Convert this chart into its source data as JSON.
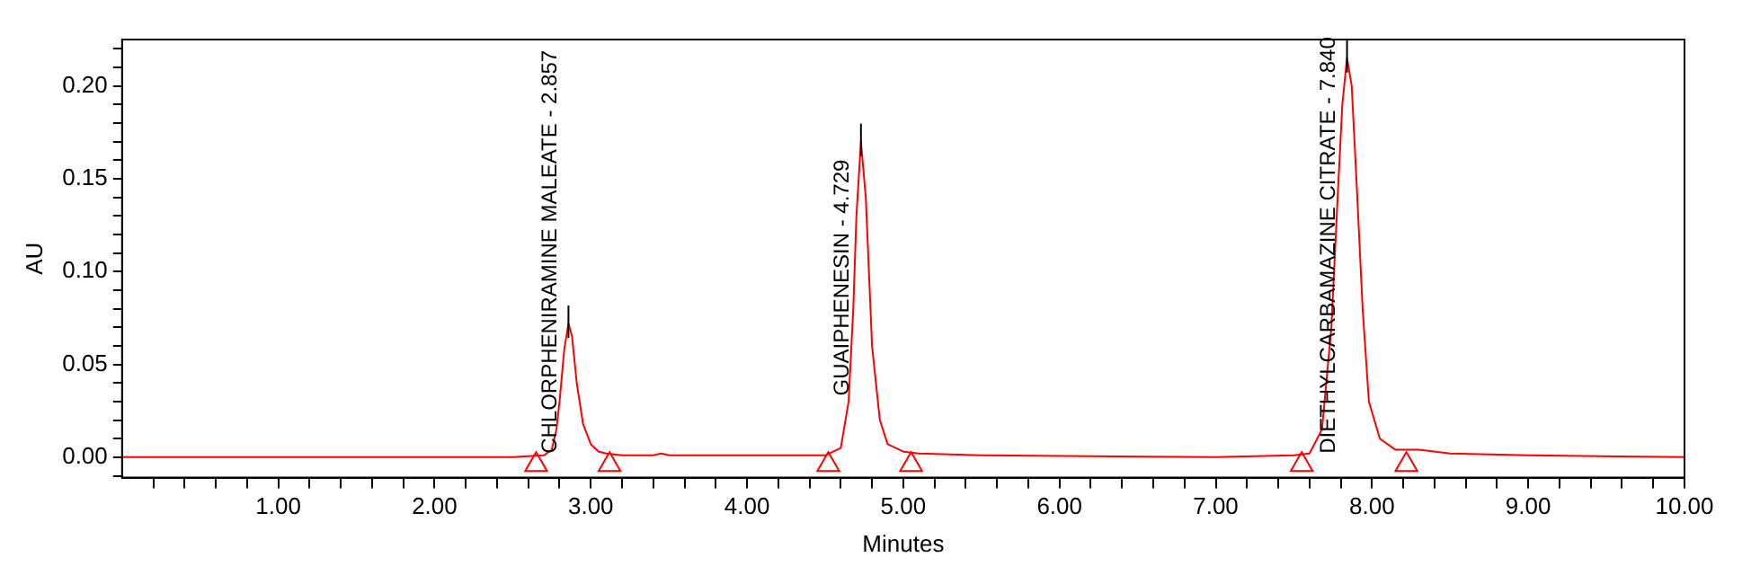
{
  "chart_data": {
    "type": "line",
    "xlabel": "Minutes",
    "ylabel": "AU",
    "xlim": [
      0,
      10
    ],
    "ylim": [
      -0.011,
      0.225
    ],
    "xticks": [
      {
        "value": 0.2,
        "label": null
      },
      {
        "value": 0.4,
        "label": null
      },
      {
        "value": 0.6,
        "label": null
      },
      {
        "value": 0.8,
        "label": null
      },
      {
        "value": 1,
        "label": "1.00"
      },
      {
        "value": 1.2,
        "label": null
      },
      {
        "value": 1.4,
        "label": null
      },
      {
        "value": 1.6,
        "label": null
      },
      {
        "value": 1.8,
        "label": null
      },
      {
        "value": 2,
        "label": "2.00"
      },
      {
        "value": 2.2,
        "label": null
      },
      {
        "value": 2.4,
        "label": null
      },
      {
        "value": 2.6,
        "label": null
      },
      {
        "value": 2.8,
        "label": null
      },
      {
        "value": 3,
        "label": "3.00"
      },
      {
        "value": 3.2,
        "label": null
      },
      {
        "value": 3.4,
        "label": null
      },
      {
        "value": 3.6,
        "label": null
      },
      {
        "value": 3.8,
        "label": null
      },
      {
        "value": 4,
        "label": "4.00"
      },
      {
        "value": 4.2,
        "label": null
      },
      {
        "value": 4.4,
        "label": null
      },
      {
        "value": 4.6,
        "label": null
      },
      {
        "value": 4.8,
        "label": null
      },
      {
        "value": 5,
        "label": "5.00"
      },
      {
        "value": 5.2,
        "label": null
      },
      {
        "value": 5.4,
        "label": null
      },
      {
        "value": 5.6,
        "label": null
      },
      {
        "value": 5.8,
        "label": null
      },
      {
        "value": 6,
        "label": "6.00"
      },
      {
        "value": 6.2,
        "label": null
      },
      {
        "value": 6.4,
        "label": null
      },
      {
        "value": 6.6,
        "label": null
      },
      {
        "value": 6.8,
        "label": null
      },
      {
        "value": 7,
        "label": "7.00"
      },
      {
        "value": 7.2,
        "label": null
      },
      {
        "value": 7.4,
        "label": null
      },
      {
        "value": 7.6,
        "label": null
      },
      {
        "value": 7.8,
        "label": null
      },
      {
        "value": 8,
        "label": "8.00"
      },
      {
        "value": 8.2,
        "label": null
      },
      {
        "value": 8.4,
        "label": null
      },
      {
        "value": 8.6,
        "label": null
      },
      {
        "value": 8.8,
        "label": null
      },
      {
        "value": 9,
        "label": "9.00"
      },
      {
        "value": 9.2,
        "label": null
      },
      {
        "value": 9.4,
        "label": null
      },
      {
        "value": 9.6,
        "label": null
      },
      {
        "value": 9.8,
        "label": null
      },
      {
        "value": 10,
        "label": "10.00"
      }
    ],
    "yticks": [
      {
        "value": -0.01,
        "label": null
      },
      {
        "value": 0,
        "label": "0.00"
      },
      {
        "value": 0.01,
        "label": null
      },
      {
        "value": 0.02,
        "label": null
      },
      {
        "value": 0.03,
        "label": null
      },
      {
        "value": 0.04,
        "label": null
      },
      {
        "value": 0.05,
        "label": "0.05"
      },
      {
        "value": 0.06,
        "label": null
      },
      {
        "value": 0.07,
        "label": null
      },
      {
        "value": 0.08,
        "label": null
      },
      {
        "value": 0.09,
        "label": null
      },
      {
        "value": 0.1,
        "label": "0.10"
      },
      {
        "value": 0.11,
        "label": null
      },
      {
        "value": 0.12,
        "label": null
      },
      {
        "value": 0.13,
        "label": null
      },
      {
        "value": 0.14,
        "label": null
      },
      {
        "value": 0.15,
        "label": "0.15"
      },
      {
        "value": 0.16,
        "label": null
      },
      {
        "value": 0.17,
        "label": null
      },
      {
        "value": 0.18,
        "label": null
      },
      {
        "value": 0.19,
        "label": null
      },
      {
        "value": 0.2,
        "label": "0.20"
      },
      {
        "value": 0.21,
        "label": null
      },
      {
        "value": 0.22,
        "label": null
      }
    ],
    "grid": false,
    "legend": false,
    "marker": "none",
    "line_style": "solid",
    "series": [
      {
        "color": "#ff0000",
        "x": [
          0,
          1,
          2,
          2.5,
          2.7,
          2.75,
          2.78,
          2.8,
          2.83,
          2.857,
          2.88,
          2.91,
          2.95,
          3.0,
          3.05,
          3.1,
          3.2,
          3.4,
          3.45,
          3.5,
          4.0,
          4.5,
          4.6,
          4.65,
          4.68,
          4.7,
          4.729,
          4.76,
          4.78,
          4.8,
          4.85,
          4.9,
          5.0,
          5.1,
          5.5,
          7.0,
          7.5,
          7.6,
          7.68,
          7.74,
          7.78,
          7.81,
          7.84,
          7.87,
          7.9,
          7.94,
          7.98,
          8.05,
          8.15,
          8.3,
          8.5,
          9,
          10
        ],
        "values": [
          0,
          0,
          0,
          0,
          0.001,
          0.004,
          0.015,
          0.03,
          0.058,
          0.072,
          0.065,
          0.04,
          0.018,
          0.007,
          0.003,
          0.002,
          0.001,
          0.001,
          0.002,
          0.001,
          0.001,
          0.001,
          0.005,
          0.03,
          0.08,
          0.13,
          0.17,
          0.14,
          0.1,
          0.06,
          0.02,
          0.007,
          0.003,
          0.002,
          0.001,
          0,
          0.001,
          0.002,
          0.015,
          0.07,
          0.14,
          0.19,
          0.215,
          0.2,
          0.15,
          0.08,
          0.03,
          0.01,
          0.004,
          0.004,
          0.002,
          0.001,
          0
        ]
      },
      {
        "type": "scatter",
        "color": "#ff0000",
        "marker": "triangle",
        "x": [
          2.65,
          3.12,
          4.52,
          5.05,
          7.55,
          8.22
        ],
        "values": [
          -0.004,
          -0.004,
          -0.004,
          -0.004,
          -0.004,
          -0.004
        ]
      }
    ],
    "annotations": [
      {
        "text": "CHLORPHENIRAMINE MALEATE - 2.857",
        "x": 2.857,
        "y": 0.072
      },
      {
        "text": "GUAIPHENESIN - 4.729",
        "x": 4.729,
        "y": 0.17
      },
      {
        "text": "DIETHYLCARBAMAZINE CITRATE - 7.840",
        "x": 7.84,
        "y": 0.215
      }
    ]
  }
}
